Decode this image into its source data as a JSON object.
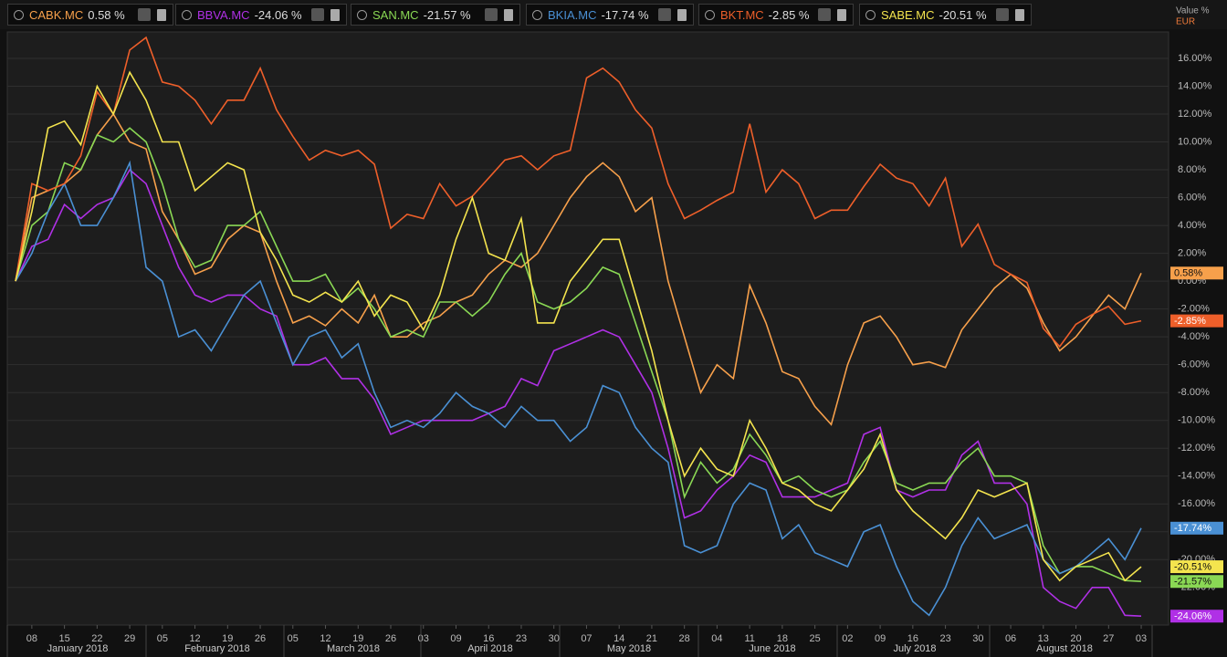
{
  "chart_data": {
    "type": "line",
    "axis_unit": "Value %",
    "currency": "EUR",
    "categories": [
      null,
      "08",
      null,
      "15",
      null,
      "22",
      null,
      "29",
      null,
      "05",
      null,
      "12",
      null,
      "19",
      null,
      "26",
      null,
      "05",
      null,
      "12",
      null,
      "19",
      null,
      "26",
      null,
      "03",
      null,
      "09",
      null,
      "16",
      null,
      "23",
      null,
      "30",
      null,
      "07",
      null,
      "14",
      null,
      "21",
      null,
      "28",
      null,
      "04",
      null,
      "11",
      null,
      "18",
      null,
      "25",
      null,
      "02",
      null,
      "09",
      null,
      "16",
      null,
      "23",
      null,
      "30",
      null,
      "06",
      null,
      "13",
      null,
      "20",
      null,
      "27",
      null,
      "03"
    ],
    "months": [
      "January 2018",
      "February 2018",
      "March 2018",
      "April 2018",
      "May 2018",
      "June 2018",
      "July 2018",
      "August 2018"
    ],
    "ylim": [
      -24.7,
      17.9
    ],
    "yticks": [
      {
        "value": 16,
        "label": "16.00%"
      },
      {
        "value": 14,
        "label": "14.00%"
      },
      {
        "value": 12,
        "label": "12.00%"
      },
      {
        "value": 10,
        "label": "10.00%"
      },
      {
        "value": 8,
        "label": "8.00%"
      },
      {
        "value": 6,
        "label": "6.00%"
      },
      {
        "value": 4,
        "label": "4.00%"
      },
      {
        "value": 2,
        "label": "2.00%"
      },
      {
        "value": 0,
        "label": "0.00%"
      },
      {
        "value": -2,
        "label": "-2.00%"
      },
      {
        "value": -4,
        "label": "-4.00%"
      },
      {
        "value": -6,
        "label": "-6.00%"
      },
      {
        "value": -8,
        "label": "-8.00%"
      },
      {
        "value": -10,
        "label": "-10.00%"
      },
      {
        "value": -12,
        "label": "-12.00%"
      },
      {
        "value": -14,
        "label": "-14.00%"
      },
      {
        "value": -16,
        "label": "-16.00%"
      },
      {
        "value": -18,
        "label": "-18.00%"
      },
      {
        "value": -20,
        "label": "-20.00%"
      },
      {
        "value": -22,
        "label": "-22.00%"
      }
    ],
    "grid": true,
    "series": [
      {
        "name": "CABK.MC",
        "legend_change": "0.58 %",
        "end_label": "0.58%",
        "color": "#f7a04b",
        "values": [
          0,
          6,
          6.5,
          7,
          8,
          10.5,
          12,
          10,
          9.5,
          5,
          3,
          0.5,
          1,
          3,
          4,
          3.5,
          0,
          -3,
          -2.5,
          -3.2,
          -2,
          -3,
          -1,
          -4,
          -4,
          -3,
          -2.5,
          -1.5,
          -1,
          0.5,
          1.5,
          1,
          2,
          4,
          6,
          7.5,
          8.5,
          7.5,
          5,
          6,
          0,
          -4,
          -8,
          -6,
          -7,
          -0.3,
          -3,
          -6.5,
          -7,
          -9,
          -10.3,
          -6,
          -3,
          -2.5,
          -4,
          -6,
          -5.8,
          -6.2,
          -3.5,
          -2,
          -0.5,
          0.5,
          -0.5,
          -3,
          -5,
          -4,
          -2.5,
          -1,
          -2,
          0.58
        ]
      },
      {
        "name": "BBVA.MC",
        "legend_change": "-24.06 %",
        "end_label": "-24.06%",
        "color": "#b030e6",
        "values": [
          0,
          2.5,
          3,
          5.5,
          4.5,
          5.5,
          6,
          8,
          7,
          4,
          1,
          -1,
          -1.5,
          -1,
          -1,
          -2,
          -2.5,
          -6,
          -6,
          -5.5,
          -7,
          -7,
          -8.5,
          -11,
          -10.5,
          -10,
          -10,
          -10,
          -10,
          -9.5,
          -9,
          -7,
          -7.5,
          -5,
          -4.5,
          -4,
          -3.5,
          -4,
          -6,
          -8,
          -12,
          -17,
          -16.5,
          -15,
          -14,
          -12.5,
          -13,
          -15.5,
          -15.5,
          -15.5,
          -15,
          -14.5,
          -11,
          -10.5,
          -15,
          -15.5,
          -15,
          -15,
          -12.5,
          -11.5,
          -14.5,
          -14.5,
          -16,
          -22,
          -23,
          -23.5,
          -22,
          -22,
          -24,
          -24.06
        ]
      },
      {
        "name": "SAN.MC",
        "legend_change": "-21.57 %",
        "end_label": "-21.57%",
        "color": "#8ad854",
        "values": [
          0,
          4,
          5,
          8.5,
          8,
          10.5,
          10,
          11,
          10,
          7,
          3,
          1,
          1.5,
          4,
          4,
          5,
          2.5,
          0,
          0,
          0.5,
          -1.5,
          -0.5,
          -2,
          -4,
          -3.5,
          -4,
          -1.5,
          -1.5,
          -2.5,
          -1.5,
          0.5,
          2,
          -1.5,
          -2,
          -1.5,
          -0.5,
          1,
          0.5,
          -3,
          -6.5,
          -10,
          -15.5,
          -13,
          -14.5,
          -13.5,
          -11,
          -12.5,
          -14.5,
          -14,
          -15,
          -15.5,
          -15,
          -13,
          -11.5,
          -14.5,
          -15,
          -14.5,
          -14.5,
          -13,
          -12,
          -14,
          -14,
          -14.5,
          -19,
          -21,
          -20.5,
          -20.5,
          -21,
          -21.5,
          -21.57
        ]
      },
      {
        "name": "BKIA.MC",
        "legend_change": "-17.74 %",
        "end_label": "-17.74%",
        "color": "#4a90d4",
        "values": [
          0,
          2,
          5,
          7,
          4,
          4,
          6,
          8.5,
          1,
          0,
          -4,
          -3.5,
          -5,
          -3,
          -1,
          0,
          -3,
          -6,
          -4,
          -3.5,
          -5.5,
          -4.5,
          -8,
          -10.5,
          -10,
          -10.5,
          -9.5,
          -8,
          -9,
          -9.5,
          -10.5,
          -9,
          -10,
          -10,
          -11.5,
          -10.5,
          -7.5,
          -8,
          -10.5,
          -12,
          -13,
          -19,
          -19.5,
          -19,
          -16,
          -14.5,
          -15,
          -18.5,
          -17.5,
          -19.5,
          -20,
          -20.5,
          -18,
          -17.5,
          -20.5,
          -23,
          -24,
          -22,
          -19,
          -17,
          -18.5,
          -18,
          -17.5,
          -20,
          -21,
          -20.5,
          -19.5,
          -18.5,
          -20,
          -17.74
        ]
      },
      {
        "name": "BKT.MC",
        "legend_change": "-2.85 %",
        "end_label": "-2.85%",
        "color": "#ee5f2a",
        "values": [
          0,
          7,
          6.5,
          7,
          9,
          13.6,
          12,
          16.6,
          17.5,
          14.3,
          14,
          13,
          11.3,
          13,
          13,
          15.3,
          12.3,
          10.4,
          8.7,
          9.4,
          9,
          9.4,
          8.4,
          3.8,
          4.8,
          4.5,
          7,
          5.4,
          6.1,
          7.4,
          8.7,
          9,
          8,
          9,
          9.4,
          14.6,
          15.3,
          14.3,
          12.3,
          11,
          7,
          4.5,
          5.1,
          5.8,
          6.4,
          11.3,
          6.4,
          8,
          7,
          4.5,
          5.1,
          5.1,
          6.8,
          8.4,
          7.4,
          7,
          5.4,
          7.4,
          2.5,
          4.1,
          1.2,
          0.5,
          -0.1,
          -3.4,
          -4.7,
          -3.1,
          -2.4,
          -1.8,
          -3.1,
          -2.85
        ]
      },
      {
        "name": "SABE.MC",
        "legend_change": "-20.51 %",
        "end_label": "-20.51%",
        "color": "#f4e44e",
        "values": [
          0,
          5,
          11,
          11.5,
          9.8,
          14,
          12,
          15,
          13,
          10,
          10,
          6.5,
          7.5,
          8.5,
          8,
          3.5,
          1.5,
          -1,
          -1.5,
          -0.8,
          -1.5,
          0,
          -2.5,
          -1,
          -1.5,
          -3.5,
          -1,
          3,
          6,
          2,
          1.5,
          4.5,
          -3,
          -3,
          0,
          1.5,
          3,
          3,
          -1,
          -5,
          -10,
          -14,
          -12,
          -13.5,
          -14,
          -10,
          -12,
          -14.5,
          -15,
          -16,
          -16.5,
          -15,
          -13.5,
          -11,
          -15,
          -16.5,
          -17.5,
          -18.5,
          -17,
          -15,
          -15.5,
          -15,
          -14.5,
          -20,
          -21.5,
          -20.5,
          -20,
          -19.5,
          -21.5,
          -20.51
        ]
      }
    ]
  }
}
